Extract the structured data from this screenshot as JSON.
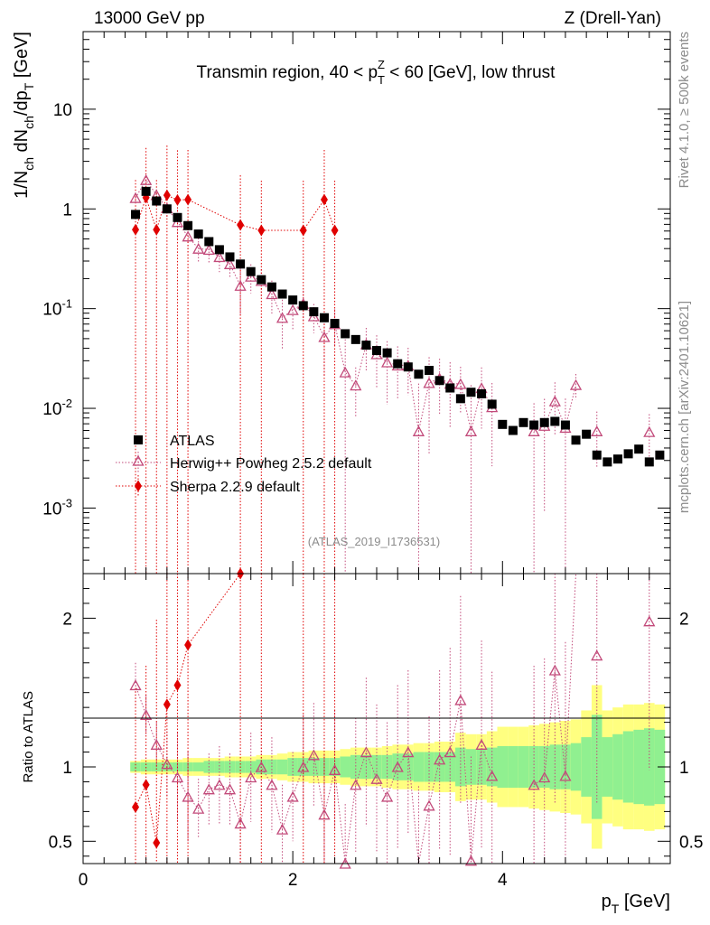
{
  "header": {
    "left": "13000 GeV pp",
    "right": "Z (Drell-Yan)"
  },
  "side": {
    "rivet": "Rivet 4.1.0, ≥ 500k events",
    "mcplots": "mcplots.cern.ch [arXiv:2401.10621]"
  },
  "chart_data": {
    "type": "scatter",
    "title": "Transmin region, 40 < p_T^Z < 60 [GeV], low thrust",
    "watermark": "(ATLAS_2019_I1736531)",
    "xlabel": "p_T [GeV]",
    "ylabel": "1/N_ch dN_ch/dp_T [GeV]",
    "ratio_ylabel": "Ratio to ATLAS",
    "xlim": [
      0,
      5.6
    ],
    "ylim_log": [
      0.00022,
      60
    ],
    "ratio_ylim": [
      0.35,
      2.3
    ],
    "x_ticks": [
      "0",
      "2",
      "4"
    ],
    "y_ticks": [
      "10",
      "1",
      "10^-1",
      "10^-2",
      "10^-3"
    ],
    "ratio_ticks": [
      "0.5",
      "1",
      "2"
    ],
    "legend": [
      "ATLAS",
      "Herwig++ Powheg 2.5.2 default",
      "Sherpa 2.2.9 default"
    ],
    "series": [
      {
        "name": "ATLAS",
        "x": [
          0.5,
          0.6,
          0.7,
          0.8,
          0.9,
          1.0,
          1.1,
          1.2,
          1.3,
          1.4,
          1.5,
          1.6,
          1.7,
          1.8,
          1.9,
          2.0,
          2.1,
          2.2,
          2.3,
          2.4,
          2.5,
          2.6,
          2.7,
          2.8,
          2.9,
          3.0,
          3.1,
          3.2,
          3.3,
          3.4,
          3.5,
          3.6,
          3.7,
          3.8,
          3.9,
          4.0,
          4.1,
          4.2,
          4.3,
          4.4,
          4.5,
          4.6,
          4.7,
          4.8,
          4.9,
          5.0,
          5.1,
          5.2,
          5.3,
          5.4,
          5.5
        ],
        "values": [
          0.88,
          1.5,
          1.2,
          1.0,
          0.82,
          0.68,
          0.56,
          0.47,
          0.39,
          0.33,
          0.28,
          0.235,
          0.195,
          0.165,
          0.14,
          0.122,
          0.107,
          0.093,
          0.081,
          0.071,
          0.056,
          0.049,
          0.043,
          0.038,
          0.036,
          0.028,
          0.026,
          0.022,
          0.024,
          0.019,
          0.016,
          0.0125,
          0.0145,
          0.014,
          0.011,
          0.0069,
          0.006,
          0.0072,
          0.0068,
          0.0072,
          0.0074,
          0.0068,
          0.0048,
          0.0055,
          0.0034,
          0.0029,
          0.0031,
          0.0035,
          0.0039,
          0.0029,
          0.0034
        ],
        "ratio_band_green": [
          0.03,
          0.03,
          0.03,
          0.03,
          0.03,
          0.03,
          0.03,
          0.04,
          0.04,
          0.04,
          0.04,
          0.04,
          0.05,
          0.05,
          0.05,
          0.06,
          0.06,
          0.06,
          0.06,
          0.06,
          0.07,
          0.08,
          0.08,
          0.08,
          0.08,
          0.09,
          0.09,
          0.1,
          0.1,
          0.1,
          0.1,
          0.13,
          0.12,
          0.12,
          0.13,
          0.14,
          0.14,
          0.14,
          0.14,
          0.14,
          0.15,
          0.15,
          0.16,
          0.2,
          0.35,
          0.2,
          0.22,
          0.24,
          0.25,
          0.26,
          0.25
        ],
        "ratio_band_yellow": [
          0.04,
          0.05,
          0.05,
          0.05,
          0.05,
          0.06,
          0.06,
          0.06,
          0.06,
          0.07,
          0.07,
          0.07,
          0.08,
          0.08,
          0.09,
          0.1,
          0.1,
          0.11,
          0.11,
          0.11,
          0.12,
          0.13,
          0.13,
          0.13,
          0.14,
          0.15,
          0.15,
          0.16,
          0.16,
          0.17,
          0.17,
          0.23,
          0.22,
          0.22,
          0.24,
          0.27,
          0.27,
          0.27,
          0.28,
          0.29,
          0.3,
          0.31,
          0.32,
          0.38,
          0.55,
          0.38,
          0.4,
          0.42,
          0.42,
          0.43,
          0.42
        ]
      },
      {
        "name": "Herwig++ Powheg 2.5.2 default",
        "x": [
          0.5,
          0.6,
          0.7,
          0.8,
          0.9,
          1.0,
          1.1,
          1.2,
          1.3,
          1.4,
          1.5,
          1.6,
          1.7,
          1.8,
          1.9,
          2.0,
          2.1,
          2.2,
          2.3,
          2.4,
          2.5,
          2.6,
          2.7,
          2.8,
          2.9,
          3.0,
          3.1,
          3.2,
          3.3,
          3.4,
          3.5,
          3.6,
          3.7,
          3.8,
          3.9,
          4.0,
          4.1,
          4.2,
          4.3,
          4.4,
          4.5,
          4.6,
          4.7,
          4.8,
          4.9,
          5.0,
          5.1,
          5.2,
          5.3,
          5.4,
          5.5
        ],
        "values": [
          1.29,
          1.95,
          1.38,
          1.02,
          0.74,
          0.53,
          0.4,
          0.39,
          0.33,
          0.28,
          0.17,
          0.21,
          0.19,
          0.14,
          0.081,
          0.097,
          0.112,
          0.084,
          0.052,
          0.07,
          0.023,
          0.017,
          0.044,
          0.035,
          0.029,
          0.027,
          0.027,
          0.0059,
          0.018,
          0.02,
          0.0177,
          0.0176,
          0.0059,
          0.016,
          0.0103,
          null,
          null,
          null,
          0.0059,
          0.0067,
          0.0118,
          0.0064,
          0.0172,
          null,
          0.0059,
          null,
          null,
          null,
          null,
          0.0058,
          null
        ],
        "ratio": [
          1.55,
          1.35,
          1.15,
          1.02,
          0.93,
          0.8,
          0.72,
          0.85,
          0.88,
          0.85,
          0.62,
          0.93,
          1.0,
          0.88,
          0.58,
          0.8,
          1.0,
          1.08,
          0.68,
          0.98,
          0.35,
          0.88,
          1.1,
          0.92,
          0.8,
          1.0,
          1.1,
          0.27,
          0.74,
          1.05,
          1.1,
          1.45,
          0.37,
          1.15,
          0.94,
          null,
          null,
          null,
          0.88,
          0.93,
          1.65,
          0.94,
          3.5,
          null,
          1.75,
          null,
          null,
          null,
          null,
          1.98,
          null
        ],
        "ratio_err": [
          0.15,
          0.13,
          0.15,
          0.22,
          0.3,
          0.3,
          0.2,
          0.24,
          0.26,
          0.24,
          0.3,
          0.3,
          0.3,
          0.32,
          0.3,
          0.3,
          0.35,
          0.35,
          0.4,
          0.4,
          0.4,
          0.45,
          0.5,
          0.5,
          0.5,
          0.55,
          0.55,
          0.6,
          0.6,
          0.6,
          0.7,
          0.7,
          0.7,
          0.7,
          0.7,
          null,
          null,
          null,
          0.8,
          0.8,
          0.9,
          0.9,
          1.0,
          null,
          1.0,
          null,
          null,
          null,
          null,
          1.0,
          null
        ]
      },
      {
        "name": "Sherpa 2.2.9 default",
        "x": [
          0.5,
          0.6,
          0.7,
          0.8,
          0.9,
          1.0,
          1.5,
          1.7,
          2.1,
          2.3,
          2.4
        ],
        "values": [
          0.62,
          1.3,
          0.62,
          1.37,
          1.23,
          1.24,
          0.69,
          0.61,
          0.61,
          1.24,
          0.61
        ],
        "ratio": [
          0.73,
          0.88,
          0.49,
          1.42,
          1.55,
          1.82,
          2.3,
          4.0,
          6.0,
          15.0,
          9.0
        ],
        "ratio_err": [
          0.8,
          0.8,
          1.5,
          1.2,
          1.4,
          1.4,
          2.2,
          null,
          null,
          null,
          null
        ]
      }
    ]
  }
}
